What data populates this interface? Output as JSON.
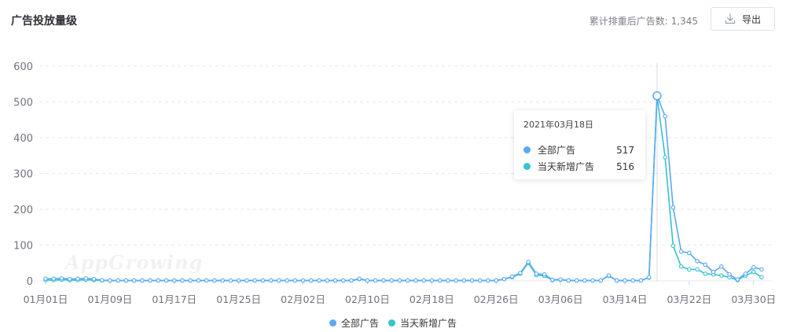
{
  "header": {
    "title": "广告投放量级",
    "summary": "累计排重后广告数: 1,345",
    "export_label": "导出"
  },
  "watermark": "AppGrowing",
  "tooltip": {
    "date": "2021年03月18日",
    "rows": [
      {
        "name": "全部广告",
        "value": "517",
        "color": "#5ba8f5"
      },
      {
        "name": "当天新增广告",
        "value": "516",
        "color": "#35c3cf"
      }
    ]
  },
  "legend": [
    {
      "name": "全部广告",
      "color": "#5ba8f5"
    },
    {
      "name": "当天新增广告",
      "color": "#35c3cf"
    }
  ],
  "chart_data": {
    "type": "line",
    "title": "",
    "xlabel": "",
    "ylabel": "",
    "ylim": [
      0,
      600
    ],
    "yticks": [
      0,
      100,
      200,
      300,
      400,
      500,
      600
    ],
    "xtick_labels": [
      "01月01日",
      "01月09日",
      "01月17日",
      "01月25日",
      "02月02日",
      "02月10日",
      "02月18日",
      "02月26日",
      "03月06日",
      "03月14日",
      "03月22日",
      "03月30日"
    ],
    "highlight_index": 76,
    "x": [
      "01月01日",
      "01月02日",
      "01月03日",
      "01月04日",
      "01月05日",
      "01月06日",
      "01月07日",
      "01月08日",
      "01月09日",
      "01月10日",
      "01月11日",
      "01月12日",
      "01月13日",
      "01月14日",
      "01月15日",
      "01月16日",
      "01月17日",
      "01月18日",
      "01月19日",
      "01月20日",
      "01月21日",
      "01月22日",
      "01月23日",
      "01月24日",
      "01月25日",
      "01月26日",
      "01月27日",
      "01月28日",
      "01月29日",
      "01月30日",
      "01月31日",
      "02月01日",
      "02月02日",
      "02月03日",
      "02月04日",
      "02月05日",
      "02月06日",
      "02月07日",
      "02月08日",
      "02月09日",
      "02月10日",
      "02月11日",
      "02月12日",
      "02月13日",
      "02月14日",
      "02月15日",
      "02月16日",
      "02月17日",
      "02月18日",
      "02月19日",
      "02月20日",
      "02月21日",
      "02月22日",
      "02月23日",
      "02月24日",
      "02月25日",
      "02月26日",
      "02月27日",
      "02月28日",
      "03月01日",
      "03月02日",
      "03月03日",
      "03月04日",
      "03月05日",
      "03月06日",
      "03月07日",
      "03月08日",
      "03月09日",
      "03月10日",
      "03月11日",
      "03月12日",
      "03月13日",
      "03月14日",
      "03月15日",
      "03月16日",
      "03月17日",
      "03月18日",
      "03月19日",
      "03月20日",
      "03月21日",
      "03月22日",
      "03月23日",
      "03月24日",
      "03月25日",
      "03月26日",
      "03月27日",
      "03月28日",
      "03月29日",
      "03月30日",
      "03月31日"
    ],
    "series": [
      {
        "name": "全部广告",
        "color": "#5ba8f5",
        "values": [
          6,
          6,
          7,
          5,
          6,
          7,
          5,
          2,
          1,
          1,
          1,
          1,
          1,
          1,
          1,
          1,
          1,
          1,
          1,
          1,
          1,
          1,
          1,
          1,
          1,
          1,
          1,
          1,
          1,
          1,
          1,
          1,
          1,
          1,
          1,
          1,
          1,
          1,
          1,
          6,
          1,
          1,
          1,
          1,
          1,
          1,
          1,
          1,
          1,
          1,
          1,
          1,
          1,
          1,
          1,
          1,
          1,
          5,
          12,
          22,
          53,
          20,
          18,
          3,
          4,
          1,
          1,
          1,
          1,
          1,
          15,
          1,
          1,
          1,
          1,
          10,
          517,
          460,
          205,
          82,
          78,
          55,
          45,
          25,
          40,
          18,
          4,
          20,
          38,
          32
        ]
      },
      {
        "name": "当天新增广告",
        "color": "#35c3cf",
        "values": [
          2,
          2,
          3,
          2,
          2,
          3,
          2,
          1,
          1,
          1,
          1,
          1,
          1,
          1,
          1,
          1,
          1,
          1,
          1,
          1,
          1,
          1,
          1,
          1,
          1,
          1,
          1,
          1,
          1,
          1,
          1,
          1,
          1,
          1,
          1,
          1,
          1,
          1,
          1,
          5,
          1,
          1,
          1,
          1,
          1,
          1,
          1,
          1,
          1,
          1,
          1,
          1,
          1,
          1,
          1,
          1,
          1,
          5,
          10,
          20,
          50,
          16,
          14,
          2,
          3,
          1,
          1,
          1,
          1,
          1,
          14,
          1,
          1,
          1,
          1,
          9,
          516,
          345,
          98,
          40,
          32,
          32,
          20,
          18,
          15,
          10,
          2,
          15,
          25,
          10
        ]
      }
    ],
    "grid": true,
    "legend_position": "bottom-center"
  }
}
